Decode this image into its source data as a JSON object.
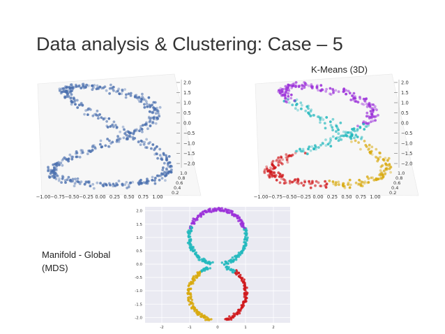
{
  "slide": {
    "title": "Data analysis & Clustering: Case – 5",
    "kmeans_label": "K-Means (3D)",
    "mds_label_line1": "Manifold - Global",
    "mds_label_line2": "(MDS)"
  },
  "colors": {
    "points_3d": "#4a6fae",
    "purple": "#9b30d9",
    "cyan": "#22b8bd",
    "red": "#d0191c",
    "gold": "#d8a90e",
    "mds_background": "#eaeaf2"
  },
  "chart_data": [
    {
      "type": "scatter",
      "name": "raw-3d",
      "projection": "3d",
      "x_ticks": [
        "−1.00",
        "−0.75",
        "−0.50",
        "−0.25",
        "0.00",
        "0.25",
        "0.50",
        "0.75",
        "1.00"
      ],
      "z_ticks": [
        "2.0",
        "1.5",
        "1.0",
        "0.5",
        "0.0",
        "−0.5",
        "−1.0",
        "−1.5",
        "−2.0"
      ],
      "y_ticks": [
        "1.0",
        "0.8",
        "0.6",
        "0.4",
        "0.2"
      ],
      "xlim": [
        -1,
        1
      ],
      "ylim": [
        0,
        1
      ],
      "zlim": [
        -2,
        2
      ],
      "shape": "figure-eight curve"
    },
    {
      "type": "scatter",
      "name": "kmeans-3d",
      "projection": "3d",
      "x_ticks": [
        "−1.00",
        "−0.75",
        "−0.50",
        "−0.25",
        "0.00",
        "0.25",
        "0.50",
        "0.75",
        "1.00"
      ],
      "z_ticks": [
        "2.0",
        "1.5",
        "1.0",
        "0.5",
        "0.0",
        "−0.5",
        "−1.0",
        "−1.5",
        "−2.0"
      ],
      "y_ticks": [
        "1.0",
        "0.8",
        "0.6",
        "0.4",
        "0.2"
      ],
      "xlim": [
        -1,
        1
      ],
      "ylim": [
        0,
        1
      ],
      "zlim": [
        -2,
        2
      ],
      "clusters": 4
    },
    {
      "type": "scatter",
      "name": "mds-2d",
      "x_ticks": [
        "-2",
        "-1",
        "0",
        "1",
        "2"
      ],
      "y_ticks": [
        "2.0",
        "1.5",
        "1.0",
        "0.5",
        "0.0",
        "-0.5",
        "-1.0",
        "-1.5",
        "-2.0"
      ],
      "xlim": [
        -2.6,
        2.6
      ],
      "ylim": [
        -2.2,
        2.15
      ],
      "grid": true,
      "clusters": 4
    }
  ]
}
